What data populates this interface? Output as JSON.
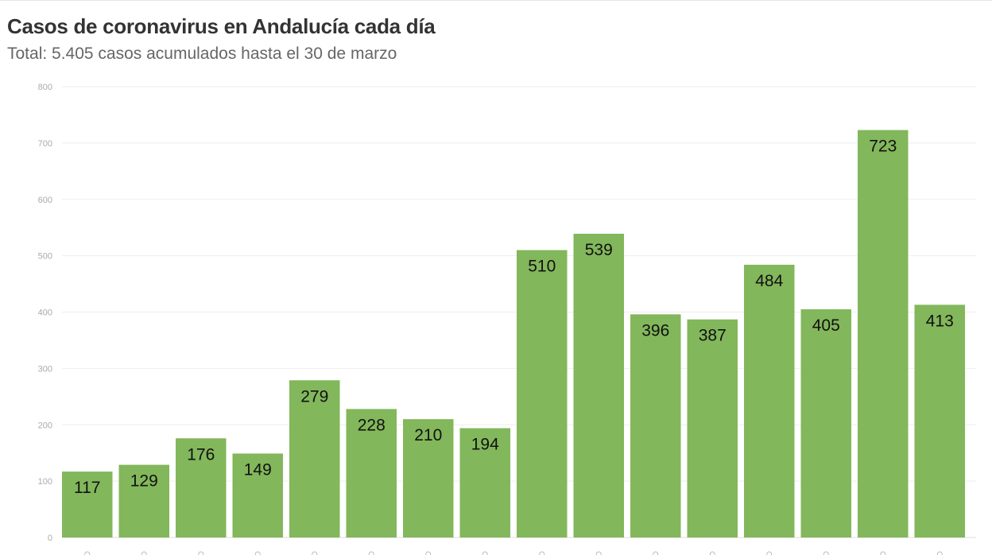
{
  "chart_data": {
    "type": "bar",
    "title": "Casos de coronavirus en Andalucía cada día",
    "subtitle": "Total: 5.405 casos acumulados hasta el 30 de marzo",
    "values": [
      117,
      129,
      176,
      149,
      279,
      228,
      210,
      194,
      510,
      539,
      396,
      387,
      484,
      405,
      723,
      413
    ],
    "ylim": [
      0,
      800
    ],
    "yticks": [
      0,
      100,
      200,
      300,
      400,
      500,
      600,
      700,
      800
    ],
    "grid": true,
    "bar_color": "#82b75b",
    "data_labels": true
  }
}
